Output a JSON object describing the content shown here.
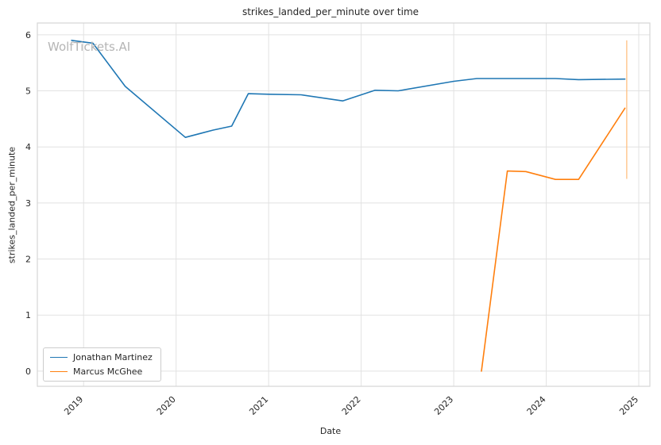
{
  "chart_data": {
    "type": "line",
    "title": "strikes_landed_per_minute over time",
    "xlabel": "Date",
    "ylabel": "strikes_landed_per_minute",
    "watermark": "WolfTickets.AI",
    "xlim": [
      2018.5,
      2025.12
    ],
    "ylim": [
      -0.27,
      6.21
    ],
    "x_ticks": [
      2019,
      2020,
      2021,
      2022,
      2023,
      2024,
      2025
    ],
    "y_ticks": [
      0,
      1,
      2,
      3,
      4,
      5,
      6
    ],
    "grid": true,
    "legend_position": "lower left",
    "series": [
      {
        "name": "Jonathan Martinez",
        "color": "#1f77b4",
        "points": [
          [
            2018.87,
            5.9
          ],
          [
            2019.1,
            5.85
          ],
          [
            2019.45,
            5.08
          ],
          [
            2020.1,
            4.17
          ],
          [
            2020.4,
            4.3
          ],
          [
            2020.6,
            4.37
          ],
          [
            2020.78,
            4.95
          ],
          [
            2021.0,
            4.94
          ],
          [
            2021.35,
            4.93
          ],
          [
            2021.8,
            4.82
          ],
          [
            2022.15,
            5.01
          ],
          [
            2022.4,
            5.0
          ],
          [
            2023.0,
            5.17
          ],
          [
            2023.25,
            5.22
          ],
          [
            2023.7,
            5.22
          ],
          [
            2024.1,
            5.22
          ],
          [
            2024.35,
            5.2
          ],
          [
            2024.85,
            5.21
          ]
        ]
      },
      {
        "name": "Marcus McGhee",
        "color": "#ff7f0e",
        "points": [
          [
            2023.3,
            0.0
          ],
          [
            2023.58,
            3.57
          ],
          [
            2023.78,
            3.56
          ],
          [
            2024.1,
            3.42
          ],
          [
            2024.35,
            3.42
          ],
          [
            2024.85,
            4.69
          ]
        ]
      }
    ],
    "error_bar": {
      "x": 2024.87,
      "y_low": 3.43,
      "y_high": 5.9,
      "color": "#ffbb78"
    }
  }
}
